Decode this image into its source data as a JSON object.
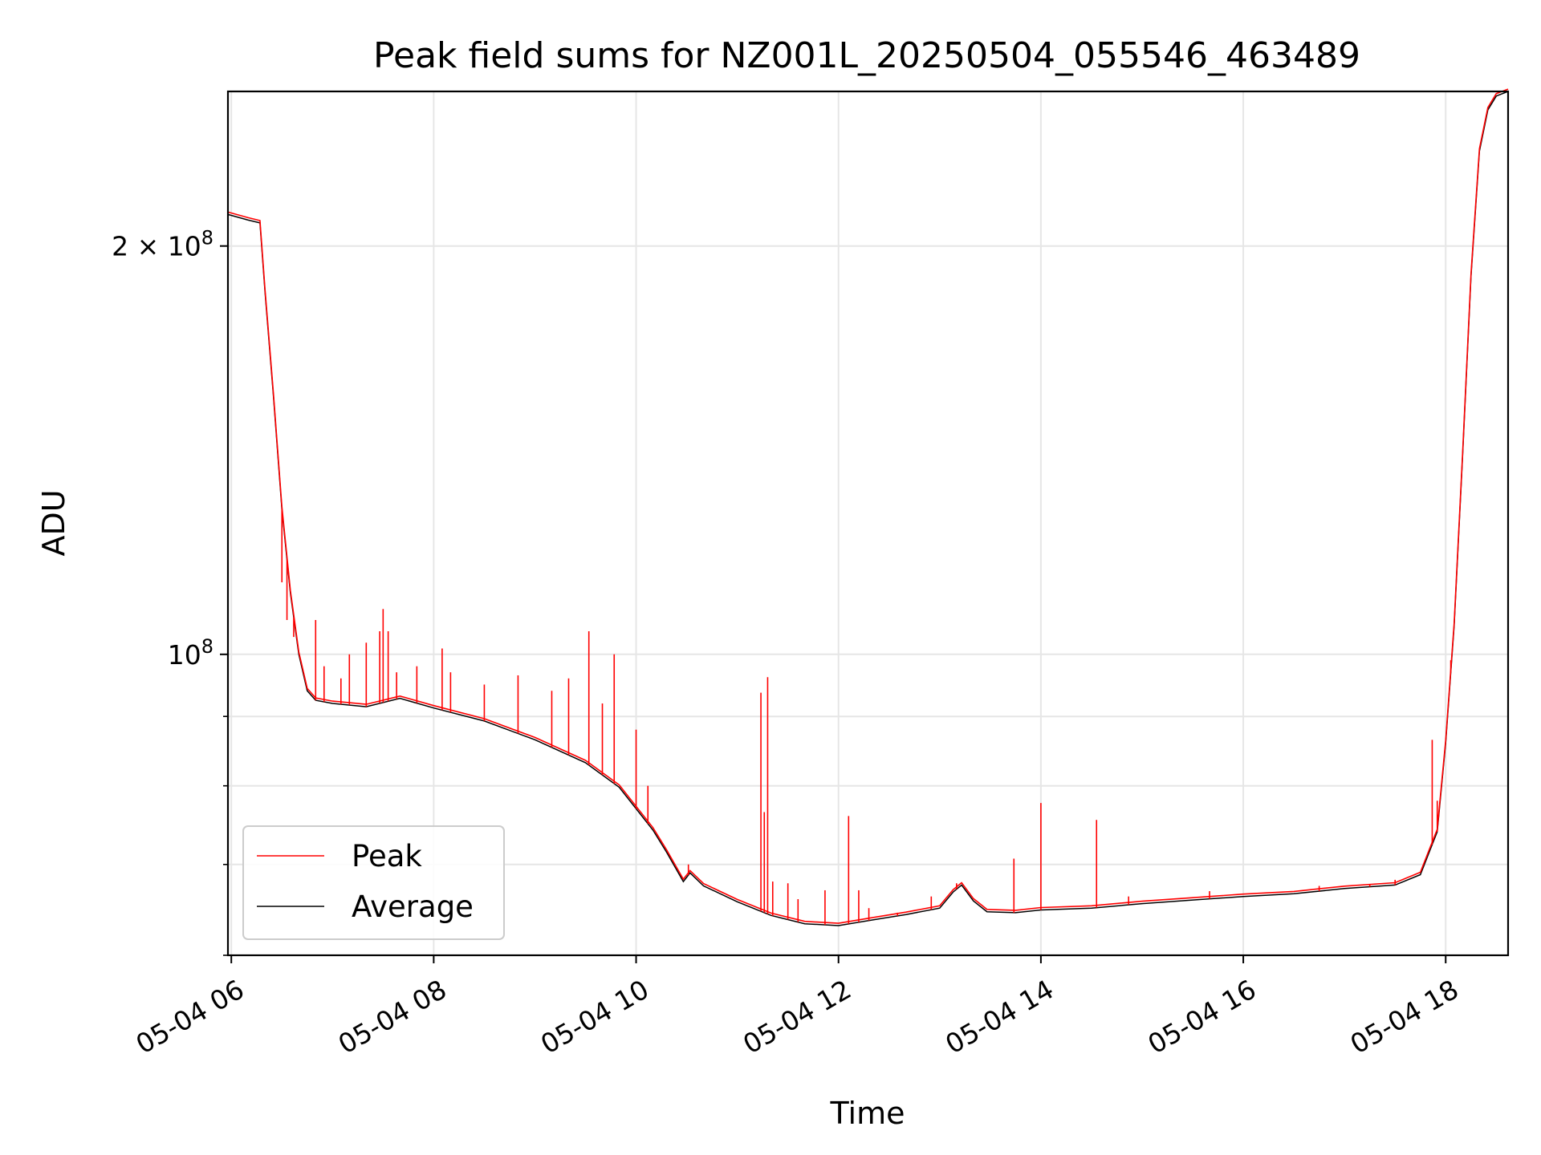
{
  "chart_data": {
    "type": "line",
    "title": "Peak field sums for NZ001L_20250504_055546_463489",
    "xlabel": "Time",
    "ylabel": "ADU",
    "x_scale": "time",
    "y_scale": "log",
    "xlim": [
      "2025-05-04 05:58",
      "2025-05-04 18:37"
    ],
    "ylim": [
      60000000,
      260000000
    ],
    "x_ticks": [
      {
        "value": "2025-05-04 06:00",
        "label": "05-04 06"
      },
      {
        "value": "2025-05-04 08:00",
        "label": "05-04 08"
      },
      {
        "value": "2025-05-04 10:00",
        "label": "05-04 10"
      },
      {
        "value": "2025-05-04 12:00",
        "label": "05-04 12"
      },
      {
        "value": "2025-05-04 14:00",
        "label": "05-04 14"
      },
      {
        "value": "2025-05-04 16:00",
        "label": "05-04 16"
      },
      {
        "value": "2025-05-04 18:00",
        "label": "05-04 18"
      }
    ],
    "y_major_ticks": [
      {
        "value": 100000000,
        "base": "10",
        "exp": "8"
      },
      {
        "value": 200000000,
        "base": "2 × 10",
        "exp": "8"
      }
    ],
    "y_minor_ticks": [
      60000000,
      70000000,
      80000000,
      90000000
    ],
    "grid": true,
    "legend_position": "lower-left",
    "colors": {
      "Peak": "#ff0000",
      "Average": "#000000"
    },
    "series": [
      {
        "name": "Average",
        "points": [
          [
            "2025-05-04 05:58",
            211000000
          ],
          [
            "2025-05-04 06:10",
            209000000
          ],
          [
            "2025-05-04 06:17",
            208000000
          ],
          [
            "2025-05-04 06:20",
            185000000
          ],
          [
            "2025-05-04 06:25",
            155000000
          ],
          [
            "2025-05-04 06:30",
            128000000
          ],
          [
            "2025-05-04 06:35",
            111000000
          ],
          [
            "2025-05-04 06:40",
            100000000
          ],
          [
            "2025-05-04 06:45",
            94000000
          ],
          [
            "2025-05-04 06:50",
            92500000
          ],
          [
            "2025-05-04 07:00",
            92000000
          ],
          [
            "2025-05-04 07:20",
            91500000
          ],
          [
            "2025-05-04 07:40",
            92800000
          ],
          [
            "2025-05-04 08:00",
            91300000
          ],
          [
            "2025-05-04 08:30",
            89300000
          ],
          [
            "2025-05-04 09:00",
            86500000
          ],
          [
            "2025-05-04 09:30",
            83200000
          ],
          [
            "2025-05-04 09:50",
            79800000
          ],
          [
            "2025-05-04 10:10",
            74200000
          ],
          [
            "2025-05-04 10:18",
            71500000
          ],
          [
            "2025-05-04 10:28",
            68000000
          ],
          [
            "2025-05-04 10:32",
            69000000
          ],
          [
            "2025-05-04 10:40",
            67500000
          ],
          [
            "2025-05-04 11:00",
            65700000
          ],
          [
            "2025-05-04 11:20",
            64200000
          ],
          [
            "2025-05-04 11:40",
            63300000
          ],
          [
            "2025-05-04 12:00",
            63100000
          ],
          [
            "2025-05-04 12:20",
            63700000
          ],
          [
            "2025-05-04 12:40",
            64300000
          ],
          [
            "2025-05-04 13:00",
            65000000
          ],
          [
            "2025-05-04 13:08",
            66800000
          ],
          [
            "2025-05-04 13:13",
            67600000
          ],
          [
            "2025-05-04 13:20",
            65800000
          ],
          [
            "2025-05-04 13:28",
            64600000
          ],
          [
            "2025-05-04 13:45",
            64500000
          ],
          [
            "2025-05-04 14:00",
            64800000
          ],
          [
            "2025-05-04 14:30",
            65000000
          ],
          [
            "2025-05-04 15:00",
            65500000
          ],
          [
            "2025-05-04 15:30",
            65900000
          ],
          [
            "2025-05-04 16:00",
            66300000
          ],
          [
            "2025-05-04 16:30",
            66600000
          ],
          [
            "2025-05-04 17:00",
            67200000
          ],
          [
            "2025-05-04 17:30",
            67600000
          ],
          [
            "2025-05-04 17:45",
            68800000
          ],
          [
            "2025-05-04 17:55",
            74000000
          ],
          [
            "2025-05-04 18:00",
            86000000
          ],
          [
            "2025-05-04 18:05",
            105000000
          ],
          [
            "2025-05-04 18:10",
            140000000
          ],
          [
            "2025-05-04 18:15",
            190000000
          ],
          [
            "2025-05-04 18:20",
            235000000
          ],
          [
            "2025-05-04 18:25",
            252000000
          ],
          [
            "2025-05-04 18:30",
            258000000
          ],
          [
            "2025-05-04 18:37",
            260000000
          ]
        ]
      },
      {
        "name": "Peak",
        "spikes": [
          [
            "2025-05-04 06:30",
            113000000
          ],
          [
            "2025-05-04 06:33",
            106000000
          ],
          [
            "2025-05-04 06:37",
            103000000
          ],
          [
            "2025-05-04 06:50",
            106000000
          ],
          [
            "2025-05-04 06:55",
            98000000
          ],
          [
            "2025-05-04 07:05",
            96000000
          ],
          [
            "2025-05-04 07:10",
            100000000
          ],
          [
            "2025-05-04 07:20",
            102000000
          ],
          [
            "2025-05-04 07:28",
            104000000
          ],
          [
            "2025-05-04 07:30",
            108000000
          ],
          [
            "2025-05-04 07:33",
            104000000
          ],
          [
            "2025-05-04 07:38",
            97000000
          ],
          [
            "2025-05-04 07:50",
            98000000
          ],
          [
            "2025-05-04 08:05",
            101000000
          ],
          [
            "2025-05-04 08:10",
            97000000
          ],
          [
            "2025-05-04 08:30",
            95000000
          ],
          [
            "2025-05-04 08:50",
            96500000
          ],
          [
            "2025-05-04 09:10",
            94000000
          ],
          [
            "2025-05-04 09:20",
            96000000
          ],
          [
            "2025-05-04 09:32",
            104000000
          ],
          [
            "2025-05-04 09:40",
            92000000
          ],
          [
            "2025-05-04 09:47",
            100000000
          ],
          [
            "2025-05-04 10:00",
            88000000
          ],
          [
            "2025-05-04 10:07",
            80000000
          ],
          [
            "2025-05-04 10:31",
            70000000
          ],
          [
            "2025-05-04 11:14",
            93700000
          ],
          [
            "2025-05-04 11:16",
            76500000
          ],
          [
            "2025-05-04 11:18",
            96200000
          ],
          [
            "2025-05-04 11:21",
            68000000
          ],
          [
            "2025-05-04 11:30",
            67800000
          ],
          [
            "2025-05-04 11:36",
            66000000
          ],
          [
            "2025-05-04 11:52",
            67000000
          ],
          [
            "2025-05-04 12:06",
            76000000
          ],
          [
            "2025-05-04 12:12",
            67000000
          ],
          [
            "2025-05-04 12:18",
            65000000
          ],
          [
            "2025-05-04 12:35",
            64500000
          ],
          [
            "2025-05-04 12:55",
            66300000
          ],
          [
            "2025-05-04 13:10",
            67800000
          ],
          [
            "2025-05-04 13:44",
            70700000
          ],
          [
            "2025-05-04 14:00",
            77700000
          ],
          [
            "2025-05-04 14:33",
            75500000
          ],
          [
            "2025-05-04 14:52",
            66300000
          ],
          [
            "2025-05-04 15:40",
            66900000
          ],
          [
            "2025-05-04 16:45",
            67500000
          ],
          [
            "2025-05-04 17:15",
            67700000
          ],
          [
            "2025-05-04 17:30",
            68200000
          ],
          [
            "2025-05-04 17:52",
            86500000
          ],
          [
            "2025-05-04 17:55",
            78000000
          ],
          [
            "2025-05-04 18:03",
            99000000
          ]
        ]
      }
    ]
  }
}
